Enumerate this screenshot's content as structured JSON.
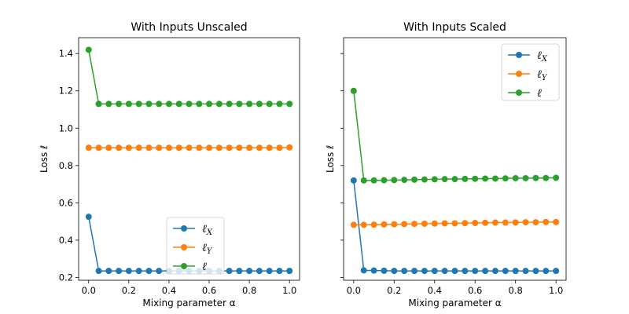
{
  "chart_data": [
    {
      "type": "line",
      "title": "With Inputs Unscaled",
      "xlabel": "Mixing parameter α",
      "ylabel": "Loss ℓ",
      "xlim": [
        -0.05,
        1.05
      ],
      "ylim": [
        0.185,
        1.485
      ],
      "xticks": [
        0.0,
        0.2,
        0.4,
        0.6,
        0.8,
        1.0
      ],
      "xtick_labels": [
        "0.0",
        "0.2",
        "0.4",
        "0.6",
        "0.8",
        "1.0"
      ],
      "yticks": [
        0.2,
        0.4,
        0.6,
        0.8,
        1.0,
        1.2,
        1.4
      ],
      "ytick_labels": [
        "0.2",
        "0.4",
        "0.6",
        "0.8",
        "1.0",
        "1.2",
        "1.4"
      ],
      "legend_position": "lower-center",
      "x": [
        0.0,
        0.05,
        0.1,
        0.15,
        0.2,
        0.25,
        0.3,
        0.35,
        0.4,
        0.45,
        0.5,
        0.55,
        0.6,
        0.65,
        0.7,
        0.75,
        0.8,
        0.85,
        0.9,
        0.95,
        1.0
      ],
      "series": [
        {
          "name": "ℓX",
          "label_main": "ℓ",
          "label_sub": "X",
          "color": "#1f77b4",
          "values": [
            0.525,
            0.235,
            0.235,
            0.235,
            0.235,
            0.235,
            0.235,
            0.235,
            0.235,
            0.235,
            0.235,
            0.235,
            0.235,
            0.235,
            0.235,
            0.235,
            0.235,
            0.235,
            0.235,
            0.235,
            0.235
          ]
        },
        {
          "name": "ℓY",
          "label_main": "ℓ",
          "label_sub": "Y",
          "color": "#ff7f0e",
          "values": [
            0.895,
            0.895,
            0.895,
            0.895,
            0.895,
            0.895,
            0.895,
            0.895,
            0.895,
            0.895,
            0.895,
            0.895,
            0.895,
            0.895,
            0.895,
            0.895,
            0.895,
            0.895,
            0.895,
            0.895,
            0.897
          ]
        },
        {
          "name": "ℓ",
          "label_main": "ℓ",
          "label_sub": "",
          "color": "#2ca02c",
          "values": [
            1.42,
            1.13,
            1.13,
            1.13,
            1.13,
            1.13,
            1.13,
            1.13,
            1.13,
            1.13,
            1.13,
            1.13,
            1.13,
            1.13,
            1.13,
            1.13,
            1.13,
            1.13,
            1.13,
            1.13,
            1.13
          ]
        }
      ]
    },
    {
      "type": "line",
      "title": "With Inputs Scaled",
      "xlabel": "Mixing parameter α",
      "ylabel": "Loss ℓ",
      "xlim": [
        -0.05,
        1.05
      ],
      "ylim": [
        0.185,
        1.485
      ],
      "xticks": [
        0.0,
        0.2,
        0.4,
        0.6,
        0.8,
        1.0
      ],
      "xtick_labels": [
        "0.0",
        "0.2",
        "0.4",
        "0.6",
        "0.8",
        "1.0"
      ],
      "yticks": [
        0.2,
        0.4,
        0.6,
        0.8,
        1.0,
        1.2,
        1.4
      ],
      "ytick_labels": [],
      "legend_position": "upper-right",
      "x": [
        0.0,
        0.05,
        0.1,
        0.15,
        0.2,
        0.25,
        0.3,
        0.35,
        0.4,
        0.45,
        0.5,
        0.55,
        0.6,
        0.65,
        0.7,
        0.75,
        0.8,
        0.85,
        0.9,
        0.95,
        1.0
      ],
      "series": [
        {
          "name": "ℓX",
          "label_main": "ℓ",
          "label_sub": "X",
          "color": "#1f77b4",
          "values": [
            0.72,
            0.238,
            0.237,
            0.236,
            0.235,
            0.235,
            0.235,
            0.235,
            0.235,
            0.235,
            0.235,
            0.235,
            0.235,
            0.235,
            0.235,
            0.235,
            0.235,
            0.235,
            0.235,
            0.235,
            0.235
          ]
        },
        {
          "name": "ℓY",
          "label_main": "ℓ",
          "label_sub": "Y",
          "color": "#ff7f0e",
          "values": [
            0.482,
            0.482,
            0.483,
            0.484,
            0.485,
            0.486,
            0.487,
            0.488,
            0.489,
            0.49,
            0.49,
            0.491,
            0.492,
            0.493,
            0.494,
            0.494,
            0.495,
            0.496,
            0.496,
            0.497,
            0.497
          ]
        },
        {
          "name": "ℓ",
          "label_main": "ℓ",
          "label_sub": "",
          "color": "#2ca02c",
          "values": [
            1.2,
            0.72,
            0.72,
            0.721,
            0.722,
            0.723,
            0.724,
            0.725,
            0.726,
            0.727,
            0.727,
            0.728,
            0.729,
            0.73,
            0.73,
            0.731,
            0.732,
            0.732,
            0.733,
            0.733,
            0.734
          ]
        }
      ]
    }
  ]
}
